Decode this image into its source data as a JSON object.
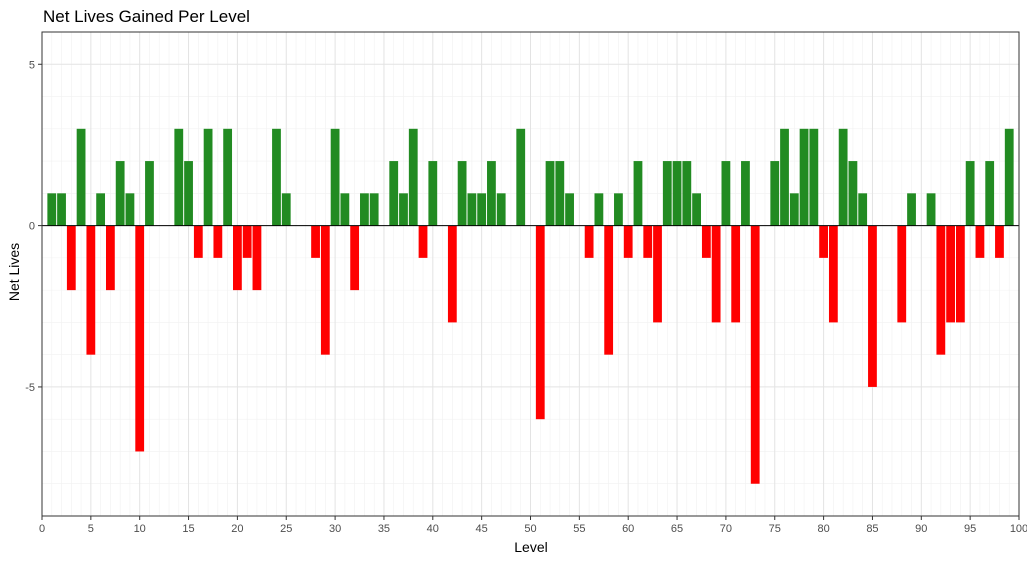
{
  "chart_data": {
    "type": "bar",
    "title": "Net Lives Gained Per Level",
    "xlabel": "Level",
    "ylabel": "Net Lives",
    "xlim": [
      0,
      100
    ],
    "ylim": [
      -9,
      6
    ],
    "x_ticks": [
      0,
      5,
      10,
      15,
      20,
      25,
      30,
      35,
      40,
      45,
      50,
      55,
      60,
      65,
      70,
      75,
      80,
      85,
      90,
      95,
      100
    ],
    "x_tick_labels": [
      "0",
      "5",
      "10",
      "15",
      "20",
      "25",
      "30",
      "35",
      "40",
      "45",
      "50",
      "55",
      "60",
      "65",
      "70",
      "75",
      "80",
      "85",
      "90",
      "95",
      "100"
    ],
    "y_ticks": [
      -5,
      0,
      5
    ],
    "y_tick_labels": [
      "-5",
      "0",
      "5"
    ],
    "grid": true,
    "positive_color": "#228B22",
    "negative_color": "#FF0000",
    "zero_line": true,
    "x": [
      1,
      2,
      3,
      4,
      5,
      6,
      7,
      8,
      9,
      10,
      11,
      12,
      13,
      14,
      15,
      16,
      17,
      18,
      19,
      20,
      21,
      22,
      23,
      24,
      25,
      26,
      27,
      28,
      29,
      30,
      31,
      32,
      33,
      34,
      35,
      36,
      37,
      38,
      39,
      40,
      41,
      42,
      43,
      44,
      45,
      46,
      47,
      48,
      49,
      50,
      51,
      52,
      53,
      54,
      55,
      56,
      57,
      58,
      59,
      60,
      61,
      62,
      63,
      64,
      65,
      66,
      67,
      68,
      69,
      70,
      71,
      72,
      73,
      74,
      75,
      76,
      77,
      78,
      79,
      80,
      81,
      82,
      83,
      84,
      85,
      86,
      87,
      88,
      89,
      90,
      91,
      92,
      93,
      94,
      95,
      96,
      97,
      98,
      99,
      100
    ],
    "values": [
      1,
      1,
      -2,
      3,
      -4,
      1,
      -2,
      2,
      1,
      -7,
      2,
      0,
      0,
      3,
      2,
      -1,
      3,
      -1,
      3,
      -2,
      -1,
      -2,
      0,
      3,
      1,
      0,
      0,
      -1,
      -4,
      3,
      1,
      -2,
      1,
      1,
      0,
      2,
      1,
      3,
      -1,
      2,
      0,
      -3,
      2,
      1,
      1,
      2,
      1,
      0,
      3,
      0,
      -6,
      2,
      2,
      1,
      0,
      -1,
      1,
      -4,
      1,
      -1,
      2,
      -1,
      -3,
      2,
      2,
      2,
      1,
      -1,
      -3,
      2,
      -3,
      2,
      -8,
      0,
      2,
      3,
      1,
      3,
      3,
      -1,
      -3,
      3,
      2,
      1,
      -5,
      0,
      0,
      -3,
      1,
      0,
      1,
      -4,
      -3,
      -3,
      2,
      -1,
      2,
      -1,
      3,
      0
    ]
  }
}
